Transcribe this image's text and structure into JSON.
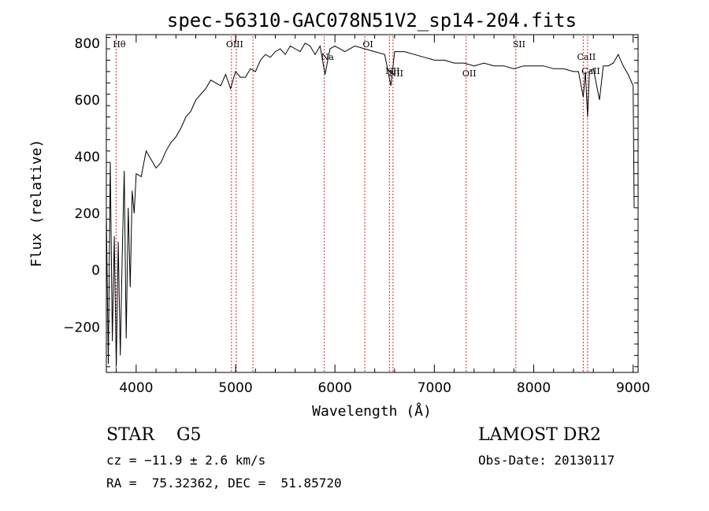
{
  "chart_data": {
    "type": "line",
    "title": "spec-56310-GAC078N51V2_sp14-204.fits",
    "xlabel": "Wavelength (Å)",
    "ylabel": "Flux (relative)",
    "xlim": [
      3700,
      9050
    ],
    "ylim": [
      -360,
      830
    ],
    "xticks": [
      4000,
      5000,
      6000,
      7000,
      8000,
      9000
    ],
    "yticks": [
      -200,
      0,
      200,
      400,
      600,
      800
    ],
    "line_color": "#000000",
    "marker_color": "#d62728",
    "spectrum": {
      "x": [
        3700,
        3720,
        3740,
        3760,
        3780,
        3800,
        3820,
        3840,
        3860,
        3880,
        3900,
        3920,
        3940,
        3960,
        3980,
        4000,
        4050,
        4100,
        4150,
        4200,
        4250,
        4300,
        4350,
        4400,
        4450,
        4500,
        4550,
        4600,
        4650,
        4700,
        4750,
        4800,
        4850,
        4900,
        4950,
        5000,
        5050,
        5100,
        5150,
        5200,
        5250,
        5300,
        5350,
        5400,
        5450,
        5500,
        5550,
        5600,
        5650,
        5700,
        5750,
        5800,
        5850,
        5900,
        5950,
        6000,
        6100,
        6200,
        6300,
        6400,
        6500,
        6563,
        6600,
        6700,
        6800,
        6900,
        7000,
        7100,
        7200,
        7300,
        7400,
        7500,
        7600,
        7700,
        7800,
        7900,
        8000,
        8100,
        8200,
        8300,
        8400,
        8450,
        8498,
        8520,
        8542,
        8560,
        8600,
        8662,
        8700,
        8750,
        8800,
        8850,
        8900,
        8950,
        9000,
        9010
      ],
      "y": [
        200,
        -330,
        380,
        -250,
        120,
        -340,
        100,
        -300,
        60,
        350,
        -240,
        220,
        -60,
        280,
        200,
        340,
        330,
        420,
        390,
        360,
        380,
        420,
        450,
        470,
        500,
        540,
        560,
        600,
        620,
        640,
        670,
        660,
        650,
        690,
        640,
        700,
        680,
        680,
        710,
        700,
        740,
        760,
        750,
        770,
        780,
        760,
        790,
        780,
        770,
        800,
        790,
        760,
        790,
        690,
        780,
        790,
        770,
        790,
        780,
        770,
        760,
        650,
        770,
        770,
        760,
        750,
        740,
        740,
        730,
        730,
        720,
        730,
        720,
        720,
        710,
        720,
        720,
        720,
        710,
        710,
        700,
        700,
        610,
        700,
        540,
        700,
        710,
        600,
        720,
        720,
        730,
        760,
        720,
        690,
        650,
        220
      ]
    },
    "lines": [
      {
        "label": "Hθ",
        "wavelength": 3798,
        "label_row": 0
      },
      {
        "label": "OIII",
        "wavelength": 4959,
        "label_row": 0
      },
      {
        "label": "",
        "wavelength": 5007,
        "label_row": 0
      },
      {
        "label": "",
        "wavelength": 5175,
        "label_row": 0
      },
      {
        "label": "Na",
        "wavelength": 5893,
        "label_row": 1
      },
      {
        "label": "OI",
        "wavelength": 6300,
        "label_row": 0
      },
      {
        "label": "NII",
        "wavelength": 6548,
        "label_row": 2
      },
      {
        "label": "NII",
        "wavelength": 6584,
        "label_row": 3
      },
      {
        "label": "OII",
        "wavelength": 7320,
        "label_row": 3
      },
      {
        "label": "SII",
        "wavelength": 7820,
        "label_row": 0
      },
      {
        "label": "CaII",
        "wavelength": 8498,
        "label_row": 1
      },
      {
        "label": "CaII",
        "wavelength": 8542,
        "label_row": 2
      }
    ]
  },
  "footer": {
    "object": "STAR    G5",
    "cz": "cz = −11.9 ± 2.6 km/s",
    "radec": "RA =  75.32362, DEC =  51.85720",
    "survey": "LAMOST DR2",
    "obsdate": "Obs-Date: 20130117"
  }
}
